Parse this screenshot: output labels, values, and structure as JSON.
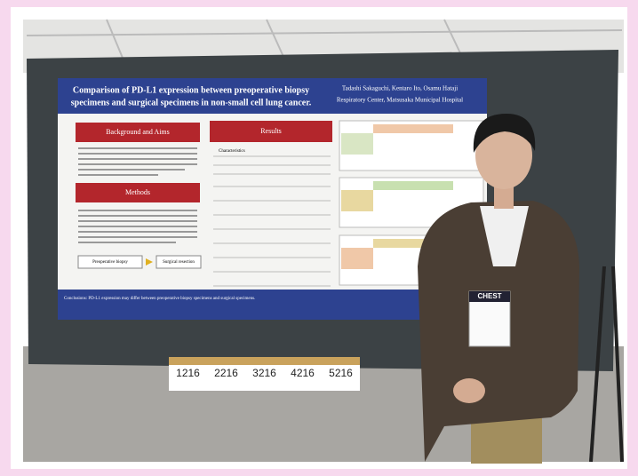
{
  "poster": {
    "title_lines": [
      "Comparison of PD-L1 expression between preoperative biopsy",
      "specimens and surgical specimens in non-small cell lung cancer."
    ],
    "authors": "Tadashi Sakaguchi, Kentaro Ito, Osamu Hataji",
    "affiliation": "Respiratory Center, Matsusaka Municipal Hospital",
    "sections": [
      "Background and Aims",
      "Methods",
      "Results"
    ],
    "characteristics": "Characteristics",
    "flow": [
      "Preoperative biopsy",
      "Surgical resection"
    ],
    "conclusion": "Conclusions: PD-L1 expression may differ between preoperative biopsy specimens and surgical specimens."
  },
  "signs": [
    "1216",
    "2216",
    "3216",
    "4216",
    "5216"
  ],
  "badge": "CHEST"
}
